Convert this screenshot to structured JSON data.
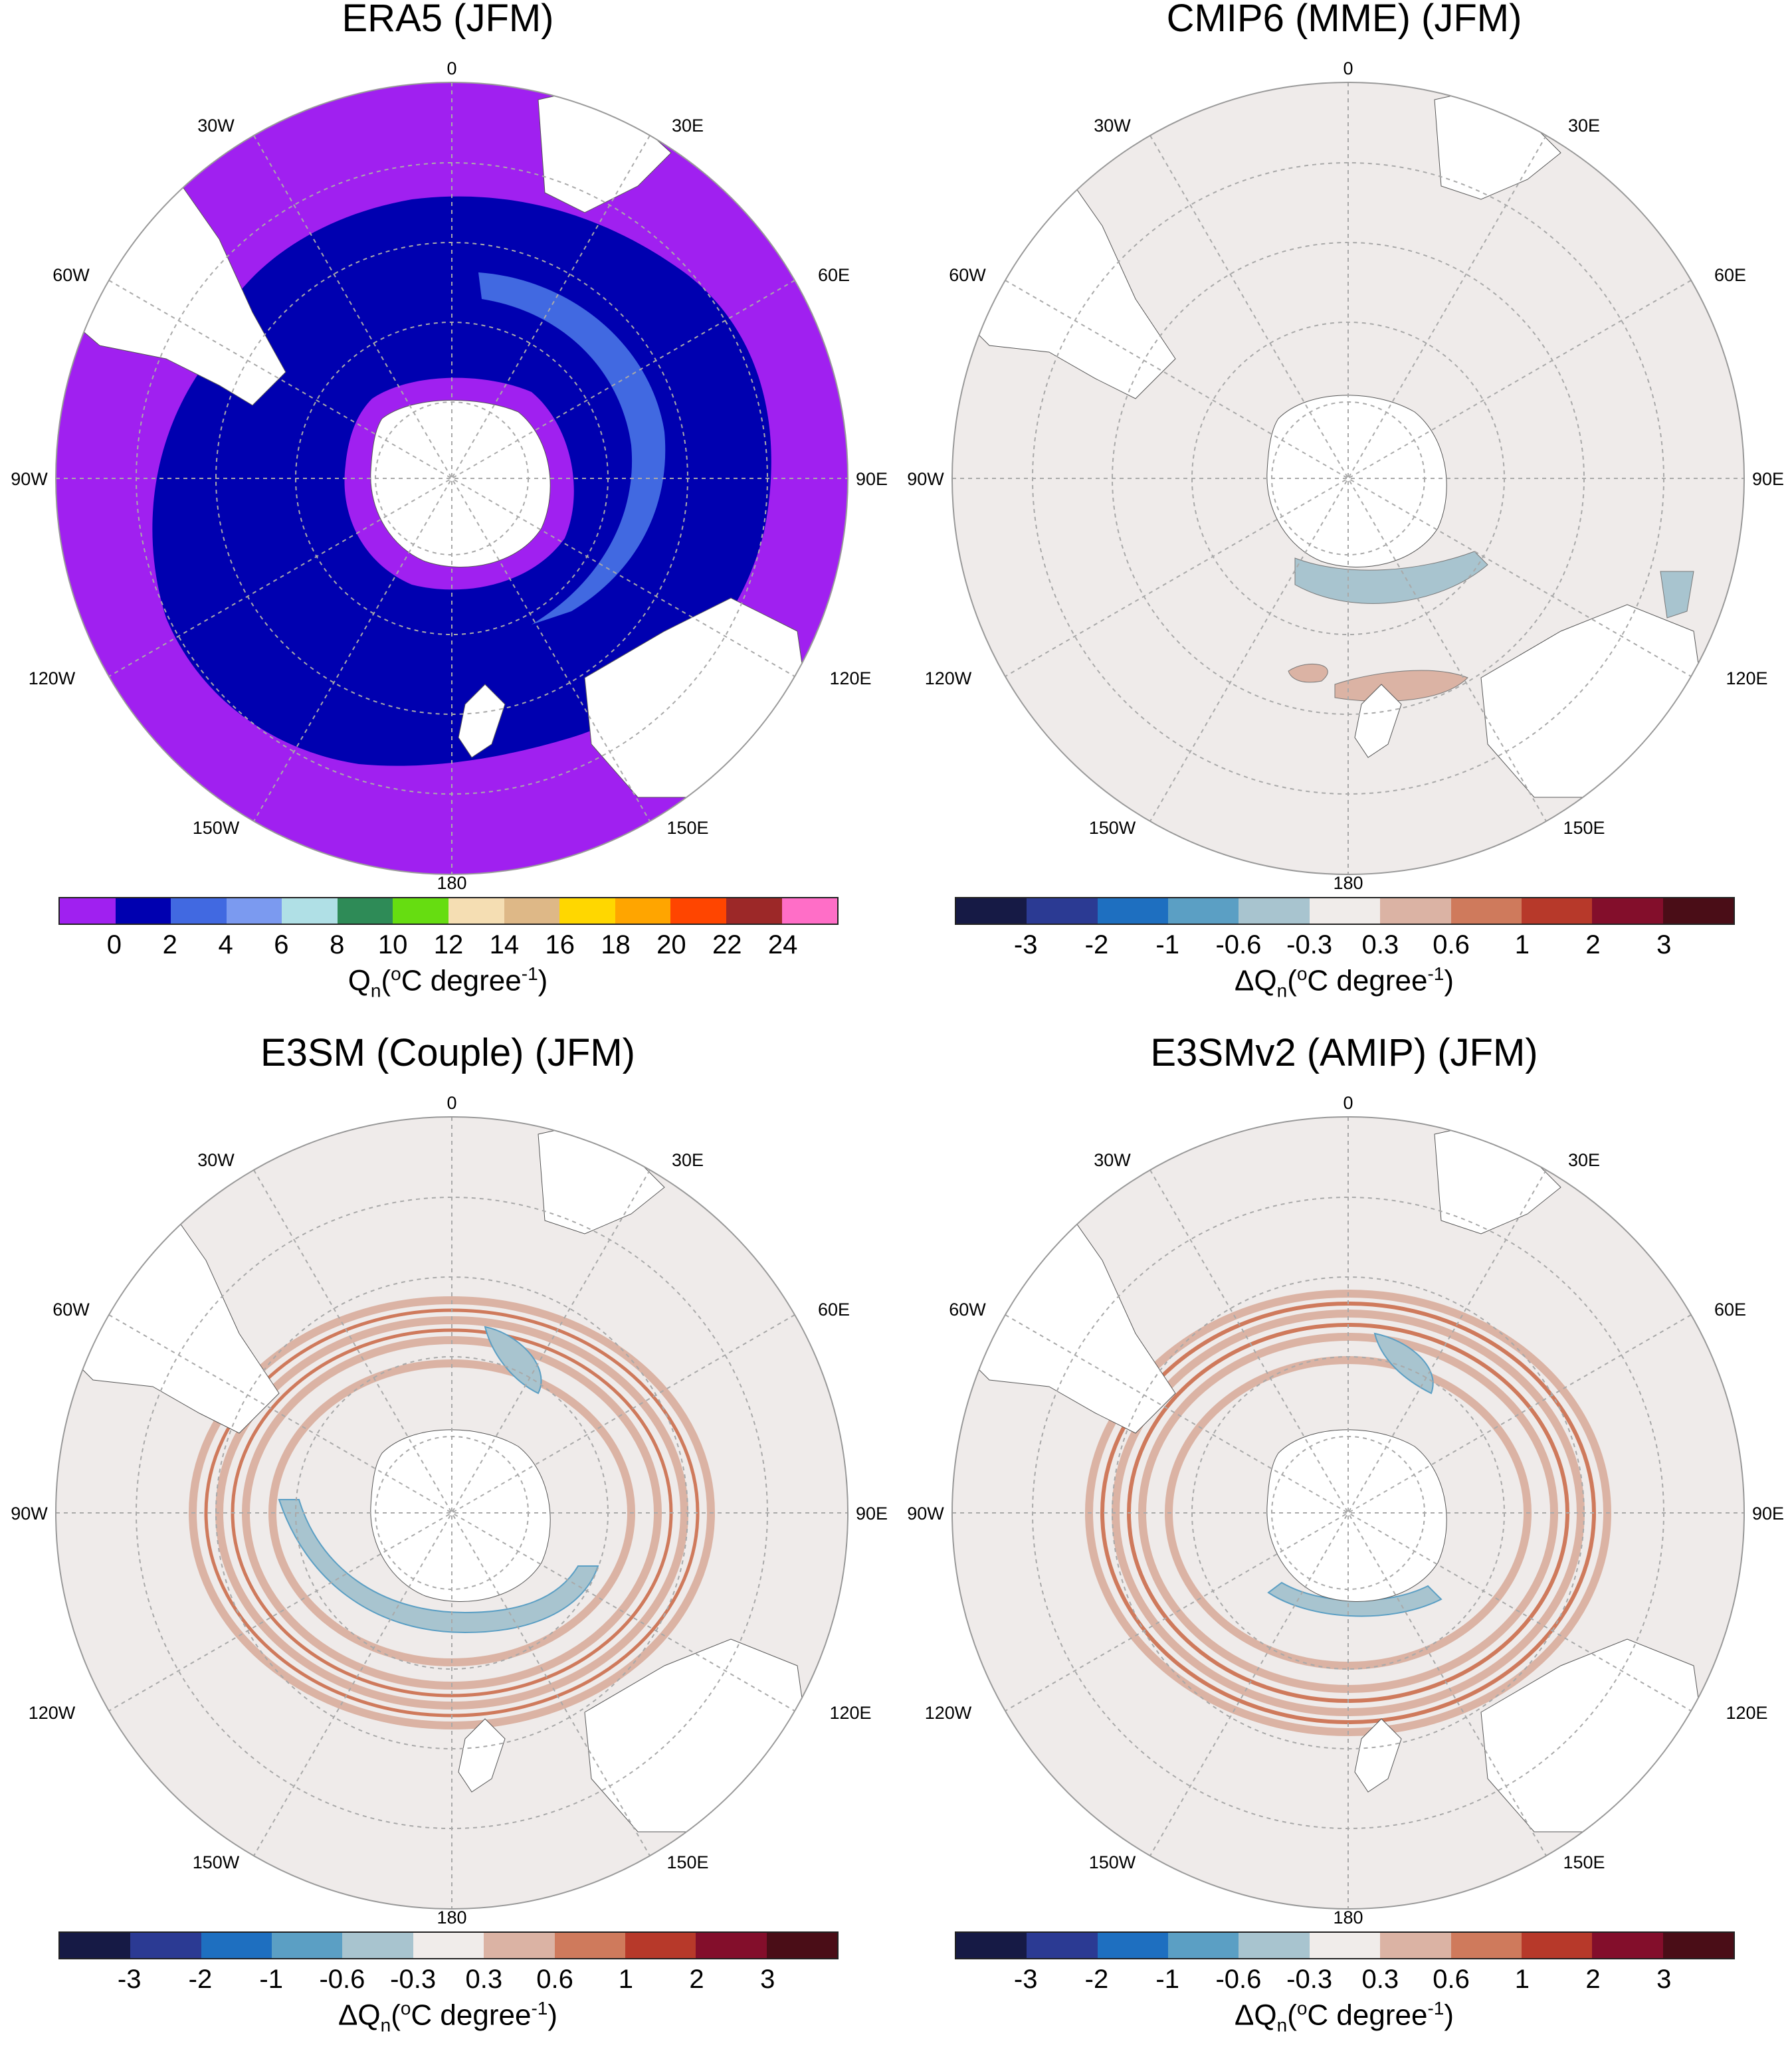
{
  "panels": [
    {
      "id": "era5",
      "title": "ERA5  (JFM)",
      "colorbar": {
        "colors": [
          "#a020f0",
          "#0000b0",
          "#4169e1",
          "#7b9af0",
          "#b0e0e6",
          "#2e8b57",
          "#66dd11",
          "#f5deb3",
          "#deb887",
          "#ffd700",
          "#ffa500",
          "#ff4500",
          "#9c2828",
          "#ff6ec7"
        ],
        "ticks": [
          "0",
          "2",
          "4",
          "6",
          "8",
          "10",
          "12",
          "14",
          "16",
          "18",
          "20",
          "22",
          "24"
        ],
        "label_main": "Q",
        "label_sub": "n",
        "label_rest1": "(",
        "label_deg": "o",
        "label_unit": "C degree",
        "label_exp": "-1",
        "label_close": ")"
      }
    },
    {
      "id": "cmip6",
      "title": "CMIP6 (MME)  (JFM)",
      "colorbar": {
        "colors": [
          "#161a45",
          "#2b3a93",
          "#1e6fc0",
          "#5b9fc4",
          "#a8c4cf",
          "#f0ecea",
          "#dbb3a4",
          "#cf7a5c",
          "#b7392a",
          "#830e2b",
          "#4a0d17"
        ],
        "ticks": [
          "-3",
          "-2",
          "-1",
          "-0.6",
          "-0.3",
          "0.3",
          "0.6",
          "1",
          "2",
          "3"
        ],
        "label_main": "ΔQ",
        "label_sub": "n",
        "label_rest1": "(",
        "label_deg": "o",
        "label_unit": "C degree",
        "label_exp": "-1",
        "label_close": ")"
      }
    },
    {
      "id": "e3sm-couple",
      "title": "E3SM (Couple)  (JFM)",
      "colorbar": {
        "colors": [
          "#161a45",
          "#2b3a93",
          "#1e6fc0",
          "#5b9fc4",
          "#a8c4cf",
          "#f0ecea",
          "#dbb3a4",
          "#cf7a5c",
          "#b7392a",
          "#830e2b",
          "#4a0d17"
        ],
        "ticks": [
          "-3",
          "-2",
          "-1",
          "-0.6",
          "-0.3",
          "0.3",
          "0.6",
          "1",
          "2",
          "3"
        ],
        "label_main": "ΔQ",
        "label_sub": "n",
        "label_rest1": "(",
        "label_deg": "o",
        "label_unit": "C degree",
        "label_exp": "-1",
        "label_close": ")"
      }
    },
    {
      "id": "e3smv2-amip",
      "title": "E3SMv2 (AMIP)  (JFM)",
      "colorbar": {
        "colors": [
          "#161a45",
          "#2b3a93",
          "#1e6fc0",
          "#5b9fc4",
          "#a8c4cf",
          "#f0ecea",
          "#dbb3a4",
          "#cf7a5c",
          "#b7392a",
          "#830e2b",
          "#4a0d17"
        ],
        "ticks": [
          "-3",
          "-2",
          "-1",
          "-0.6",
          "-0.3",
          "0.3",
          "0.6",
          "1",
          "2",
          "3"
        ],
        "label_main": "ΔQ",
        "label_sub": "n",
        "label_rest1": "(",
        "label_deg": "o",
        "label_unit": "C degree",
        "label_exp": "-1",
        "label_close": ")"
      }
    }
  ],
  "longitude_labels": {
    "top": "0",
    "l30w": "30W",
    "r30e": "30E",
    "l60w": "60W",
    "r60e": "60E",
    "l90w": "90W",
    "r90e": "90E",
    "l120w": "120W",
    "r120e": "120E",
    "l150w": "150W",
    "r150e": "150E",
    "bottom": "180"
  },
  "colors": {
    "ocean_neutral": "#efebea",
    "land": "#ffffff",
    "grid": "#a9a9a9",
    "era5_outer": "#a020f0",
    "era5_inner": "#0000b0",
    "era5_band": "#4169e1",
    "pos_weak": "#dbb3a4",
    "pos_mid": "#cf7a5c",
    "neg_weak": "#a8c4cf",
    "neg_mid": "#5b9fc4"
  }
}
